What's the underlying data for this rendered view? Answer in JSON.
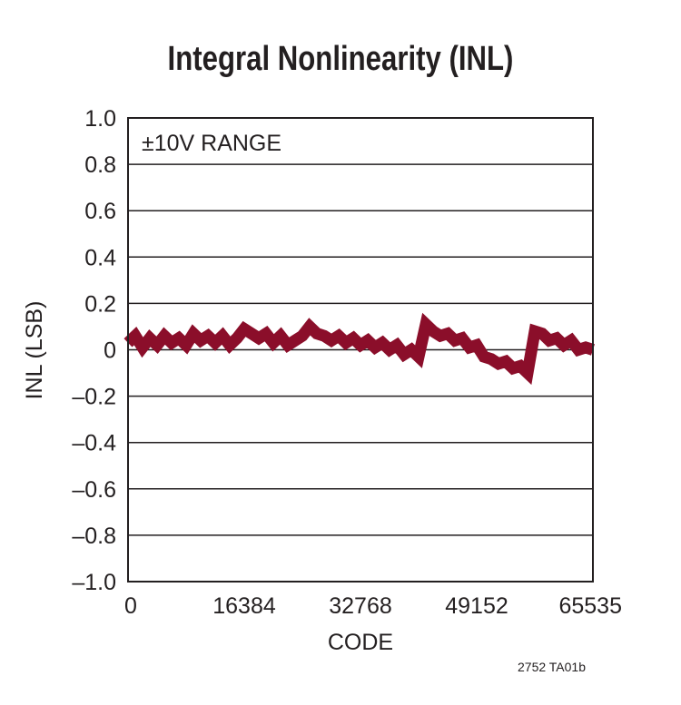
{
  "chart_data": {
    "type": "line",
    "title": "Integral Nonlinearity (INL)",
    "xlabel": "CODE",
    "ylabel": "INL (LSB)",
    "annotation": "±10V RANGE",
    "xlim": [
      0,
      65535
    ],
    "ylim": [
      -1.0,
      1.0
    ],
    "xticks": [
      "0",
      "16384",
      "32768",
      "49152",
      "65535"
    ],
    "xtick_values": [
      0,
      16384,
      32768,
      49152,
      65535
    ],
    "yticks": [
      "1.0",
      "0.8",
      "0.6",
      "0.4",
      "0.2",
      "0",
      "–0.2",
      "–0.4",
      "–0.6",
      "–0.8",
      "–1.0"
    ],
    "ytick_values": [
      1.0,
      0.8,
      0.6,
      0.4,
      0.2,
      0,
      -0.2,
      -0.4,
      -0.6,
      -0.8,
      -1.0
    ],
    "grid": true,
    "series": [
      {
        "color": "#8b0e2a",
        "x_step": 1024,
        "values": [
          0.03,
          0.06,
          0.01,
          0.05,
          0.02,
          0.06,
          0.03,
          0.05,
          0.02,
          0.07,
          0.04,
          0.06,
          0.03,
          0.06,
          0.02,
          0.05,
          0.09,
          0.07,
          0.05,
          0.07,
          0.03,
          0.06,
          0.02,
          0.04,
          0.06,
          0.1,
          0.07,
          0.06,
          0.04,
          0.06,
          0.03,
          0.05,
          0.02,
          0.04,
          0.01,
          0.03,
          0.0,
          0.02,
          -0.02,
          0.0,
          -0.03,
          0.11,
          0.08,
          0.06,
          0.07,
          0.04,
          0.05,
          0.01,
          0.02,
          -0.03,
          -0.04,
          -0.06,
          -0.05,
          -0.08,
          -0.07,
          -0.1,
          0.08,
          0.07,
          0.04,
          0.05,
          0.02,
          0.04,
          0.0,
          0.01,
          0.0
        ]
      }
    ]
  },
  "footnote": "2752 TA01b"
}
